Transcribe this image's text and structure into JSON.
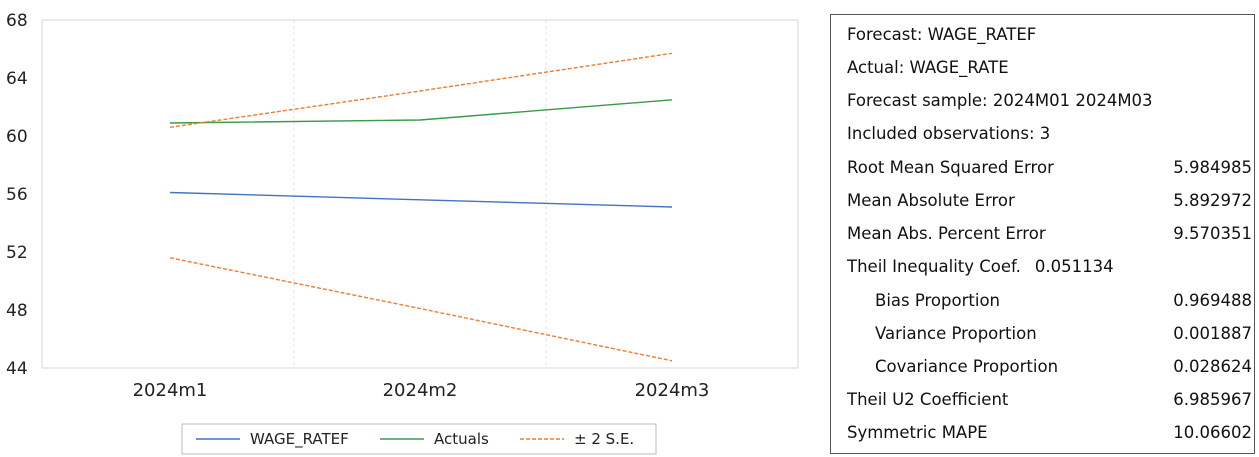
{
  "chart_data": {
    "type": "line",
    "categories": [
      "2024m1",
      "2024m2",
      "2024m3"
    ],
    "ylim": [
      44,
      68
    ],
    "yticks": [
      44,
      48,
      52,
      56,
      60,
      64,
      68
    ],
    "grid": "vertical dashed",
    "legend_position": "bottom",
    "series": [
      {
        "name": "WAGE_RATEF",
        "values": [
          56.1,
          55.6,
          55.1
        ],
        "color": "#4472c4",
        "style": "solid"
      },
      {
        "name": "Actuals",
        "values": [
          60.9,
          61.1,
          62.5
        ],
        "color": "#3a9a4a",
        "style": "solid"
      },
      {
        "name": "± 2 S.E.",
        "values": [
          60.6,
          63.1,
          65.7
        ],
        "color": "#ed7d31",
        "style": "dashed",
        "band": "upper"
      },
      {
        "name": "± 2 S.E.",
        "values": [
          51.6,
          48.1,
          44.5
        ],
        "color": "#ed7d31",
        "style": "dashed",
        "band": "lower"
      }
    ],
    "legend": [
      "WAGE_RATEF",
      "Actuals",
      "± 2 S.E."
    ]
  },
  "stats": {
    "forecast": "Forecast: WAGE_RATEF",
    "actual": "Actual: WAGE_RATE",
    "sample": "Forecast sample: 2024M01 2024M03",
    "included": "Included observations: 3",
    "rows": [
      {
        "label": "Root Mean Squared Error",
        "value": "5.984985"
      },
      {
        "label": "Mean Absolute Error",
        "value": "5.892972"
      },
      {
        "label": "Mean Abs. Percent Error",
        "value": "9.570351"
      },
      {
        "label": "Theil Inequality Coef.",
        "value": "0.051134"
      },
      {
        "label": "Bias Proportion",
        "value": "0.969488"
      },
      {
        "label": "Variance Proportion",
        "value": "0.001887"
      },
      {
        "label": "Covariance Proportion",
        "value": "0.028624"
      },
      {
        "label": "Theil U2 Coefficient",
        "value": "6.985967"
      },
      {
        "label": "Symmetric MAPE",
        "value": "10.06602"
      }
    ]
  }
}
